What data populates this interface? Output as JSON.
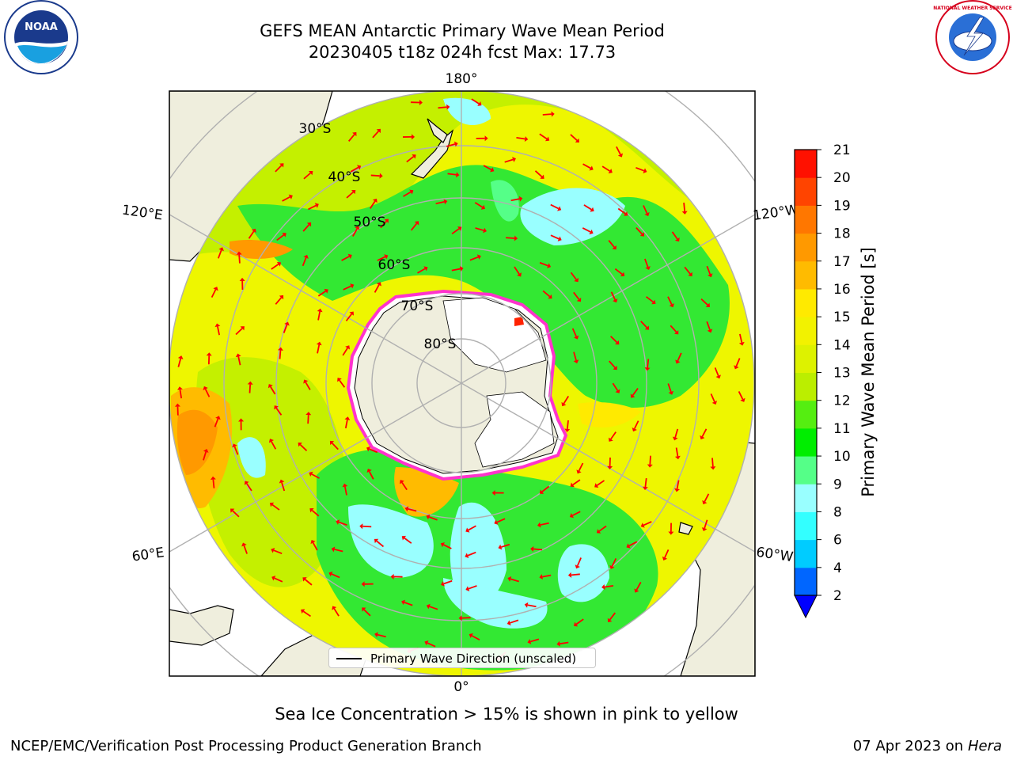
{
  "title": {
    "line1": "GEFS MEAN Antarctic Primary Wave Mean Period",
    "line2": "20230405 t18z 024h fcst   Max: 17.73"
  },
  "subtitle": "Sea Ice Concentration > 15% is shown in pink to yellow",
  "footer": {
    "left": "NCEP/EMC/Verification Post Processing Product Generation Branch",
    "date": "07 Apr 2023 on ",
    "machine": "Hera"
  },
  "logos": {
    "left": "NOAA",
    "right": "NATIONAL WEATHER SERVICE"
  },
  "legend": {
    "label": "Primary Wave Direction (unscaled)"
  },
  "map": {
    "projection": "south-polar-stereographic",
    "longitude_labels": [
      "180°",
      "120°E",
      "120°W",
      "60°E",
      "60°W",
      "0°"
    ],
    "latitude_labels": [
      "30°S",
      "40°S",
      "50°S",
      "60°S",
      "70°S",
      "80°S"
    ],
    "colors": {
      "land": "#efeedd",
      "ice": "#ffffff",
      "ice_edge": "#ff33cc",
      "arrows": "#ff0000",
      "grid": "#b0b0b0"
    }
  },
  "colorbar": {
    "label": "Primary Wave Mean Period [s]",
    "ticks": [
      "2",
      "4",
      "6",
      "8",
      "9",
      "10",
      "11",
      "12",
      "13",
      "14",
      "15",
      "16",
      "17",
      "18",
      "19",
      "20",
      "21"
    ],
    "colors": [
      "#0066ff",
      "#00ccff",
      "#33ffff",
      "#99ffff",
      "#55ff88",
      "#00ee00",
      "#55ee11",
      "#bbee00",
      "#ddf200",
      "#f2f200",
      "#ffea00",
      "#ffbb00",
      "#ff9900",
      "#ff7700",
      "#ff4400",
      "#ff1100"
    ],
    "extend_color": "#0000ff"
  }
}
